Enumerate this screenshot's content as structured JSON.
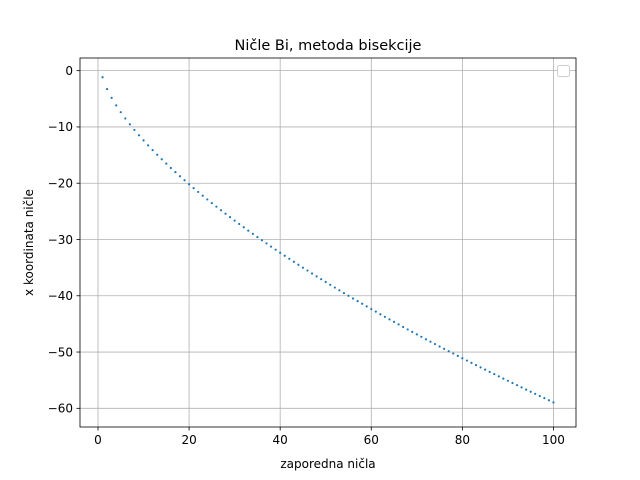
{
  "chart_data": {
    "type": "scatter",
    "title": "Ničle Bi, metoda bisekcije",
    "xlabel": "zaporedna ničla",
    "ylabel": "x koordinata ničle",
    "xlim": [
      -3.95,
      104.95
    ],
    "ylim": [
      -63.32,
      2.25
    ],
    "xticks": [
      0,
      20,
      40,
      60,
      80,
      100
    ],
    "xtick_labels": [
      "0",
      "20",
      "40",
      "60",
      "80",
      "100"
    ],
    "yticks": [
      0,
      -10,
      -20,
      -30,
      -40,
      -50,
      -60
    ],
    "ytick_labels": [
      "0",
      "−10",
      "−20",
      "−30",
      "−40",
      "−50",
      "−60"
    ],
    "grid": true,
    "legend": "top-right (empty)",
    "series_color": "#1f77b4",
    "series": [
      {
        "x": [
          1,
          2,
          3,
          4,
          5,
          6,
          7,
          8,
          9,
          10,
          11,
          12,
          13,
          14,
          15,
          16,
          17,
          18,
          19,
          20,
          21,
          22,
          23,
          24,
          25,
          26,
          27,
          28,
          29,
          30,
          31,
          32,
          33,
          34,
          35,
          36,
          37,
          38,
          39,
          40,
          41,
          42,
          43,
          44,
          45,
          46,
          47,
          48,
          49,
          50,
          51,
          52,
          53,
          54,
          55,
          56,
          57,
          58,
          59,
          60,
          61,
          62,
          63,
          64,
          65,
          66,
          67,
          68,
          69,
          70,
          71,
          72,
          73,
          74,
          75,
          76,
          77,
          78,
          79,
          80,
          81,
          82,
          83,
          84,
          85,
          86,
          87,
          88,
          89,
          90,
          91,
          92,
          93,
          94,
          95,
          96,
          97,
          98,
          99,
          100
        ],
        "values": [
          -1.174,
          -3.272,
          -4.831,
          -6.17,
          -7.376,
          -8.492,
          -9.538,
          -10.53,
          -11.48,
          -12.39,
          -13.27,
          -14.12,
          -14.94,
          -15.74,
          -16.52,
          -17.29,
          -18.03,
          -18.76,
          -19.48,
          -20.18,
          -20.87,
          -21.55,
          -22.22,
          -22.88,
          -23.53,
          -24.17,
          -24.8,
          -25.42,
          -26.03,
          -26.64,
          -27.24,
          -27.83,
          -28.42,
          -29.0,
          -29.57,
          -30.14,
          -30.7,
          -31.26,
          -31.81,
          -32.35,
          -32.89,
          -33.43,
          -33.96,
          -34.49,
          -35.01,
          -35.52,
          -36.04,
          -36.55,
          -37.05,
          -37.55,
          -38.05,
          -38.54,
          -39.03,
          -39.52,
          -40.0,
          -40.48,
          -40.95,
          -41.42,
          -41.89,
          -42.36,
          -42.82,
          -43.28,
          -43.74,
          -44.19,
          -44.64,
          -45.09,
          -45.54,
          -45.98,
          -46.42,
          -46.86,
          -47.29,
          -47.73,
          -48.16,
          -48.58,
          -49.01,
          -49.43,
          -49.85,
          -50.27,
          -50.68,
          -51.1,
          -51.51,
          -51.92,
          -52.32,
          -52.73,
          -53.13,
          -53.53,
          -53.93,
          -54.33,
          -54.72,
          -55.11,
          -55.5,
          -55.89,
          -56.28,
          -56.67,
          -57.05,
          -57.43,
          -57.81,
          -58.19,
          -58.56,
          -58.94
        ]
      }
    ]
  }
}
